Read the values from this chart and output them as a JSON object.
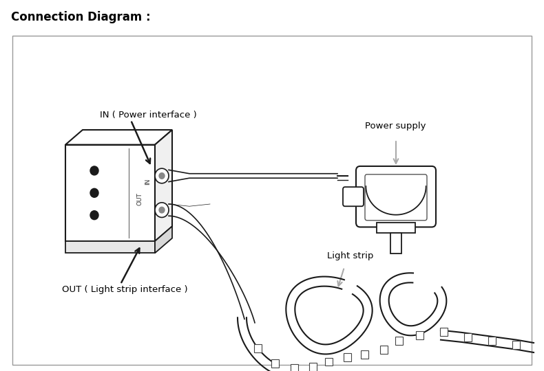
{
  "title": "Connection Diagram :",
  "title_fontsize": 12,
  "bg_color": "#ffffff",
  "border_color": "#999999",
  "line_color": "#1a1a1a",
  "text_color": "#000000",
  "label_in": "IN ( Power interface )",
  "label_out": "OUT ( Light strip interface )",
  "label_power": "Power supply",
  "label_strip": "Light strip",
  "figsize": [
    7.9,
    5.4
  ],
  "dpi": 100
}
